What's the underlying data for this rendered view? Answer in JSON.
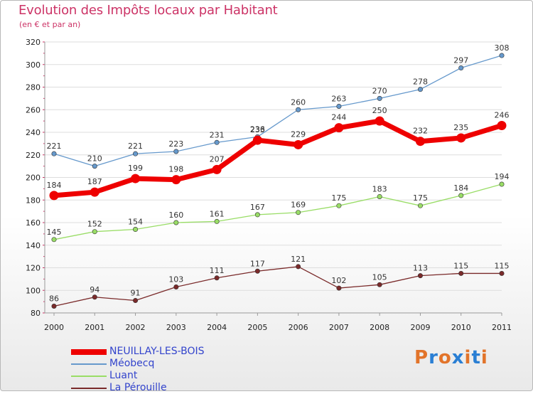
{
  "title": "Evolution des Impôts locaux par Habitant",
  "subtitle": "(en € et par an)",
  "logo": {
    "text": "Proxiti",
    "letters": [
      "P",
      "r",
      "o",
      "x",
      "i",
      "t",
      "i"
    ],
    "colors": [
      "#e2742a",
      "#2a7fd4",
      "#e2742a",
      "#2a7fd4",
      "#e2742a",
      "#2a7fd4",
      "#e2742a"
    ]
  },
  "chart_data": {
    "type": "line",
    "title": "Evolution des Impôts locaux par Habitant",
    "subtitle": "(en € et par an)",
    "xlabel": "",
    "ylabel": "",
    "x": [
      "2000",
      "2001",
      "2002",
      "2003",
      "2004",
      "2005",
      "2006",
      "2007",
      "2008",
      "2009",
      "2010",
      "2011"
    ],
    "ylim": [
      80,
      320
    ],
    "yticks": [
      80,
      100,
      120,
      140,
      160,
      180,
      200,
      220,
      240,
      260,
      280,
      300,
      320
    ],
    "grid": "horizontal",
    "legend_position": "bottom-left",
    "series": [
      {
        "name": "NEUILLAY-LES-BOIS",
        "color": "#ee0000",
        "values": [
          184,
          187,
          199,
          198,
          207,
          233,
          229,
          244,
          250,
          232,
          235,
          246
        ],
        "emphasis": true
      },
      {
        "name": "Méobecq",
        "color": "#6699cc",
        "values": [
          221,
          210,
          221,
          223,
          231,
          236,
          260,
          263,
          270,
          278,
          297,
          308
        ]
      },
      {
        "name": "Luant",
        "color": "#99dd66",
        "values": [
          145,
          152,
          154,
          160,
          161,
          167,
          169,
          175,
          183,
          175,
          184,
          194
        ]
      },
      {
        "name": "La Pérouille",
        "color": "#7a2a2a",
        "values": [
          86,
          94,
          91,
          103,
          111,
          117,
          121,
          102,
          105,
          113,
          115,
          115
        ]
      }
    ]
  }
}
